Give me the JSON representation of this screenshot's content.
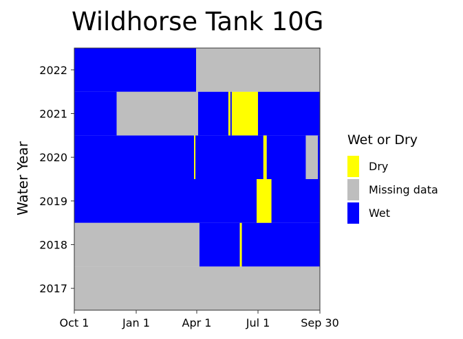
{
  "chart_data": {
    "type": "heatmap",
    "title": "Wildhorse Tank 10G",
    "ylabel": "Water Year",
    "xlabel": "",
    "x_ticks": [
      {
        "label": "Oct 1",
        "day": 0
      },
      {
        "label": "Jan 1",
        "day": 92
      },
      {
        "label": "Apr 1",
        "day": 182
      },
      {
        "label": "Jul 1",
        "day": 273
      },
      {
        "label": "Sep 30",
        "day": 364
      }
    ],
    "x_range_days": [
      0,
      365
    ],
    "years": [
      "2017",
      "2018",
      "2019",
      "2020",
      "2021",
      "2022"
    ],
    "legend": {
      "title": "Wet or Dry",
      "placement": "right",
      "items": [
        {
          "label": "Dry",
          "color": "#ffff00"
        },
        {
          "label": "Missing data",
          "color": "#bebebe"
        },
        {
          "label": "Wet",
          "color": "#0000ff"
        }
      ]
    },
    "status_colors": {
      "Dry": "#ffff00",
      "Missing data": "#bebebe",
      "Wet": "#0000ff"
    },
    "segments": [
      {
        "year": "2017",
        "start": "Oct 1",
        "end": "Sep 30",
        "status": "Missing data"
      },
      {
        "year": "2018",
        "start": "Oct 1",
        "end": "Apr 5",
        "status": "Missing data"
      },
      {
        "year": "2018",
        "start": "Apr 5",
        "end": "Jun 4",
        "status": "Wet"
      },
      {
        "year": "2018",
        "start": "Jun 4",
        "end": "Jun 7",
        "status": "Dry"
      },
      {
        "year": "2018",
        "start": "Jun 7",
        "end": "Sep 30",
        "status": "Wet"
      },
      {
        "year": "2019",
        "start": "Oct 1",
        "end": "Jun 29",
        "status": "Wet"
      },
      {
        "year": "2019",
        "start": "Jun 29",
        "end": "Jul 21",
        "status": "Dry"
      },
      {
        "year": "2019",
        "start": "Jul 21",
        "end": "Sep 30",
        "status": "Wet"
      },
      {
        "year": "2020",
        "start": "Oct 1",
        "end": "Mar 28",
        "status": "Wet"
      },
      {
        "year": "2020",
        "start": "Mar 28",
        "end": "Mar 30",
        "status": "Dry"
      },
      {
        "year": "2020",
        "start": "Mar 30",
        "end": "Jul 9",
        "status": "Wet"
      },
      {
        "year": "2020",
        "start": "Jul 9",
        "end": "Jul 14",
        "status": "Dry"
      },
      {
        "year": "2020",
        "start": "Jul 14",
        "end": "Sep 10",
        "status": "Wet"
      },
      {
        "year": "2020",
        "start": "Sep 10",
        "end": "Sep 28",
        "status": "Missing data"
      },
      {
        "year": "2020",
        "start": "Sep 28",
        "end": "Sep 30",
        "status": "Wet"
      },
      {
        "year": "2021",
        "start": "Oct 1",
        "end": "Dec 3",
        "status": "Wet"
      },
      {
        "year": "2021",
        "start": "Dec 3",
        "end": "Apr 3",
        "status": "Missing data"
      },
      {
        "year": "2021",
        "start": "Apr 3",
        "end": "May 18",
        "status": "Wet"
      },
      {
        "year": "2021",
        "start": "May 18",
        "end": "May 21",
        "status": "Dry"
      },
      {
        "year": "2021",
        "start": "May 21",
        "end": "May 23",
        "status": "Wet"
      },
      {
        "year": "2021",
        "start": "May 23",
        "end": "Jul 1",
        "status": "Dry"
      },
      {
        "year": "2021",
        "start": "Jul 1",
        "end": "Sep 30",
        "status": "Wet"
      },
      {
        "year": "2022",
        "start": "Oct 1",
        "end": "Mar 31",
        "status": "Wet"
      },
      {
        "year": "2022",
        "start": "Mar 31",
        "end": "Sep 30",
        "status": "Missing data"
      }
    ]
  }
}
